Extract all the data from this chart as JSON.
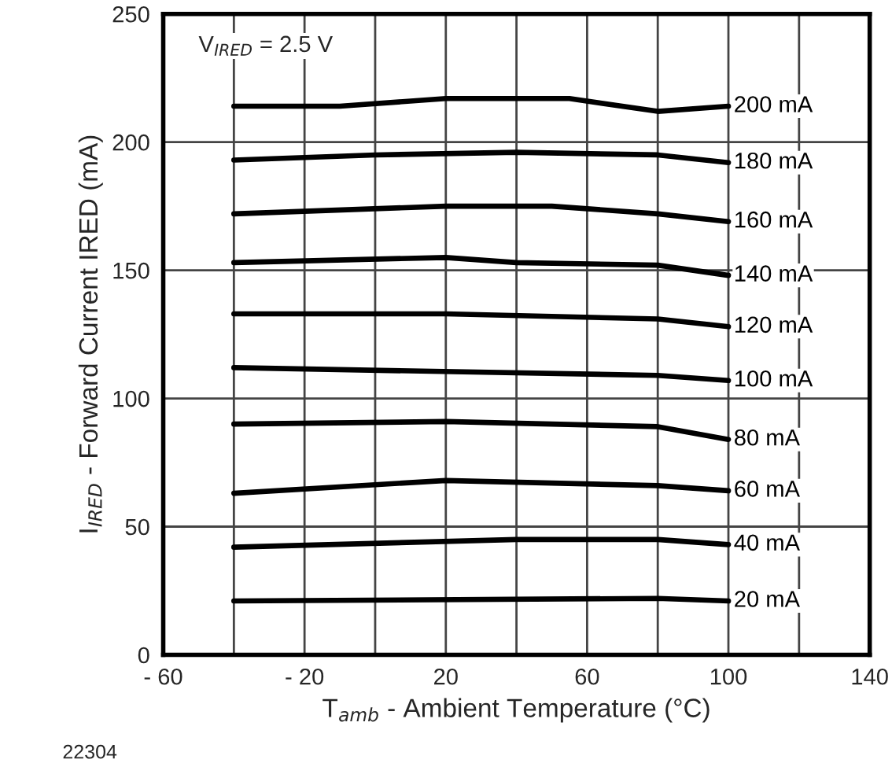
{
  "chart_data": {
    "type": "line",
    "xlabel": "T$_{amb}$ - Ambient Temperature (°C)",
    "ylabel": "I$_{IRED}$ - Forward Current IRED (mA)",
    "annotations": [
      "V$_{IRED}$ = 2.5 V",
      "22304"
    ],
    "xlim": [
      -60,
      140
    ],
    "ylim": [
      0,
      250
    ],
    "xticks": [
      {
        "value": -60,
        "label": "- 60"
      },
      {
        "value": -40,
        "label": null
      },
      {
        "value": -20,
        "label": "- 20"
      },
      {
        "value": 0,
        "label": null
      },
      20,
      {
        "value": 40,
        "label": null
      },
      60,
      {
        "value": 80,
        "label": null
      },
      100,
      {
        "value": 120,
        "label": null
      },
      140
    ],
    "yticks": [
      0,
      50,
      100,
      150,
      200,
      250
    ],
    "grid": true,
    "legend": false,
    "marker": "none",
    "line_style": "solid",
    "series": [
      {
        "name": "200 mA",
        "color": "#000000",
        "x": [
          -40,
          -10,
          20,
          55,
          80,
          100
        ],
        "values": [
          214,
          214,
          217,
          217,
          212,
          214
        ]
      },
      {
        "name": "180 mA",
        "color": "#000000",
        "x": [
          -40,
          0,
          40,
          80,
          100
        ],
        "values": [
          193,
          195,
          196,
          195,
          192
        ]
      },
      {
        "name": "160 mA",
        "color": "#000000",
        "x": [
          -40,
          20,
          50,
          80,
          100
        ],
        "values": [
          172,
          175,
          175,
          172,
          169
        ]
      },
      {
        "name": "140 mA",
        "color": "#000000",
        "x": [
          -40,
          20,
          40,
          80,
          100
        ],
        "values": [
          153,
          155,
          153,
          152,
          148
        ]
      },
      {
        "name": "120 mA",
        "color": "#000000",
        "x": [
          -40,
          20,
          80,
          100
        ],
        "values": [
          133,
          133,
          131,
          128
        ]
      },
      {
        "name": "100 mA",
        "color": "#000000",
        "x": [
          -40,
          80,
          100
        ],
        "values": [
          112,
          109,
          107
        ]
      },
      {
        "name": "80 mA",
        "color": "#000000",
        "x": [
          -40,
          20,
          80,
          100
        ],
        "values": [
          90,
          91,
          89,
          84
        ]
      },
      {
        "name": "60 mA",
        "color": "#000000",
        "x": [
          -40,
          20,
          80,
          100
        ],
        "values": [
          63,
          68,
          66,
          64
        ]
      },
      {
        "name": "40 mA",
        "color": "#000000",
        "x": [
          -40,
          40,
          80,
          100
        ],
        "values": [
          42,
          45,
          45,
          43
        ]
      },
      {
        "name": "20 mA",
        "color": "#000000",
        "x": [
          -40,
          80,
          100
        ],
        "values": [
          21,
          22,
          21
        ]
      }
    ]
  }
}
